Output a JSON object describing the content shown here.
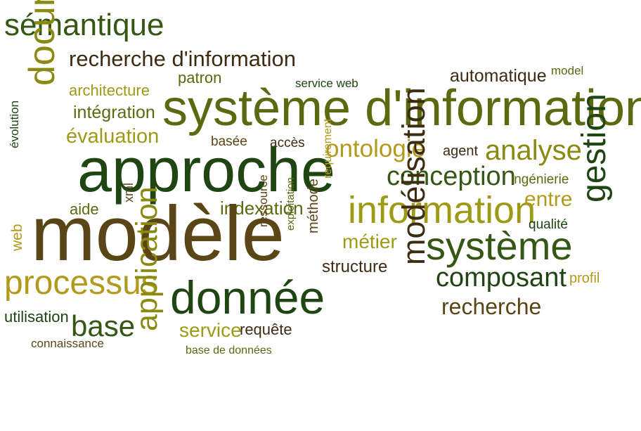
{
  "words": {
    "semantique": "sémantique",
    "recherche_information": "recherche d'information",
    "document": "document",
    "patron": "patron",
    "service_web": "service web",
    "automatique": "automatique",
    "model": "model",
    "architecture": "architecture",
    "systeme_information": "système d'information",
    "integration": "intégration",
    "evaluation": "évaluation",
    "evolution": "évolution",
    "basee": "basée",
    "acces": "accès",
    "ontologie": "ontologie",
    "agent": "agent",
    "analyse": "analyse",
    "approche": "approche",
    "conception": "conception",
    "ingenierie": "ingénierie",
    "requirement": "requirement",
    "information": "information",
    "entre": "entre",
    "gestion": "gestion",
    "xml": "xml",
    "aide": "aide",
    "indexation": "indexation",
    "qualite": "qualité",
    "web": "web",
    "modele": "modèle",
    "ressource": "ressource",
    "exploitation": "exploitation",
    "methode": "méthode",
    "metier": "métier",
    "systeme": "système",
    "modelisation": "modélisation",
    "structure": "structure",
    "processus": "processus",
    "composant": "composant",
    "profil": "profil",
    "donnee": "donnée",
    "utilisation": "utilisation",
    "recherche": "recherche",
    "base": "base",
    "application": "application",
    "service": "service",
    "requete": "requête",
    "connaissance": "connaissance",
    "base_de_donnees": "base de données"
  }
}
